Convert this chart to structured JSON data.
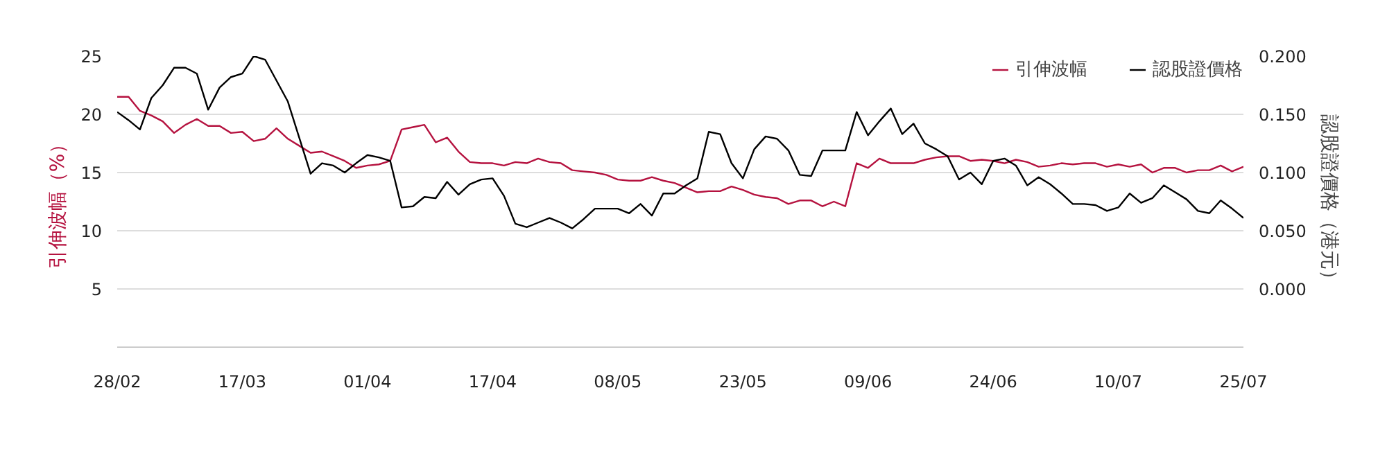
{
  "chart_data": {
    "type": "line",
    "ylabel": "引伸波幅（%）",
    "y2label": "認股證價格（港元）",
    "categories": [
      "28/02",
      null,
      null,
      null,
      null,
      null,
      null,
      null,
      null,
      null,
      null,
      "17/03",
      null,
      null,
      null,
      null,
      null,
      null,
      null,
      null,
      null,
      null,
      "01/04",
      null,
      null,
      null,
      null,
      null,
      null,
      null,
      null,
      null,
      null,
      "17/04",
      null,
      null,
      null,
      null,
      null,
      null,
      null,
      null,
      null,
      null,
      "08/05",
      null,
      null,
      null,
      null,
      null,
      null,
      null,
      null,
      null,
      null,
      "23/05",
      null,
      null,
      null,
      null,
      null,
      null,
      null,
      null,
      null,
      null,
      "09/06",
      null,
      null,
      null,
      null,
      null,
      null,
      null,
      null,
      null,
      null,
      "24/06",
      null,
      null,
      null,
      null,
      null,
      null,
      null,
      null,
      null,
      null,
      "10/07",
      null,
      null,
      null,
      null,
      null,
      null,
      null,
      null,
      null,
      null,
      "25/07"
    ],
    "ylim": [
      0,
      25
    ],
    "yticks": [
      5,
      10,
      15,
      20,
      25
    ],
    "y2lim": [
      -0.05,
      0.2
    ],
    "y2ticks": [
      {
        "value": 0,
        "label": "0.000"
      },
      {
        "value": 0.05,
        "label": "0.050"
      },
      {
        "value": 0.1,
        "label": "0.100"
      },
      {
        "value": 0.15,
        "label": "0.150"
      },
      {
        "value": 0.2,
        "label": "0.200"
      }
    ],
    "grid": "y",
    "legend": "top right",
    "line_style": "solid",
    "series": [
      {
        "name": "引伸波幅",
        "color": "#b5123f",
        "values": [
          21.5,
          21.5,
          20.3,
          19.9,
          19.4,
          18.4,
          19.1,
          19.6,
          19.0,
          19.0,
          18.4,
          18.5,
          17.7,
          17.9,
          18.8,
          17.9,
          17.3,
          16.7,
          16.8,
          16.4,
          16.0,
          15.4,
          15.6,
          15.7,
          16.0,
          18.7,
          18.9,
          19.1,
          17.6,
          18.0,
          16.8,
          15.9,
          15.8,
          15.8,
          15.6,
          15.9,
          15.8,
          16.2,
          15.9,
          15.8,
          15.2,
          15.1,
          15.0,
          14.8,
          14.4,
          14.3,
          14.3,
          14.6,
          14.3,
          14.1,
          13.7,
          13.3,
          13.4,
          13.4,
          13.8,
          13.5,
          13.1,
          12.9,
          12.8,
          12.3,
          12.6,
          12.6,
          12.1,
          12.5,
          12.1,
          15.8,
          15.4,
          16.2,
          15.8,
          15.8,
          15.8,
          16.1,
          16.3,
          16.4,
          16.4,
          16.0,
          16.1,
          16.0,
          15.8,
          16.1,
          15.9,
          15.5,
          15.6,
          15.8,
          15.7,
          15.8,
          15.8,
          15.5,
          15.7,
          15.5,
          15.7,
          15.0,
          15.4,
          15.4,
          15.0,
          15.2,
          15.2,
          15.6,
          15.1,
          15.5
        ]
      },
      {
        "name": "認股證價格",
        "color": "#000000",
        "axis": "y2",
        "values": [
          0.152,
          0.145,
          0.137,
          0.164,
          0.175,
          0.19,
          0.19,
          0.185,
          0.154,
          0.173,
          0.182,
          0.185,
          0.2,
          0.197,
          0.179,
          0.161,
          0.13,
          0.099,
          0.108,
          0.106,
          0.1,
          0.108,
          0.115,
          0.113,
          0.11,
          0.07,
          0.071,
          0.079,
          0.078,
          0.092,
          0.081,
          0.09,
          0.094,
          0.095,
          0.08,
          0.056,
          0.053,
          0.057,
          0.061,
          0.057,
          0.052,
          0.06,
          0.069,
          0.069,
          0.069,
          0.065,
          0.073,
          0.063,
          0.082,
          0.082,
          0.089,
          0.095,
          0.135,
          0.133,
          0.108,
          0.095,
          0.12,
          0.131,
          0.129,
          0.119,
          0.098,
          0.097,
          0.119,
          0.119,
          0.119,
          0.152,
          0.132,
          0.144,
          0.155,
          0.133,
          0.142,
          0.125,
          0.12,
          0.114,
          0.094,
          0.1,
          0.09,
          0.11,
          0.112,
          0.106,
          0.089,
          0.096,
          0.09,
          0.082,
          0.073,
          0.073,
          0.072,
          0.067,
          0.07,
          0.082,
          0.074,
          0.078,
          0.089,
          0.083,
          0.077,
          0.067,
          0.065,
          0.076,
          0.069,
          0.061
        ]
      }
    ]
  }
}
